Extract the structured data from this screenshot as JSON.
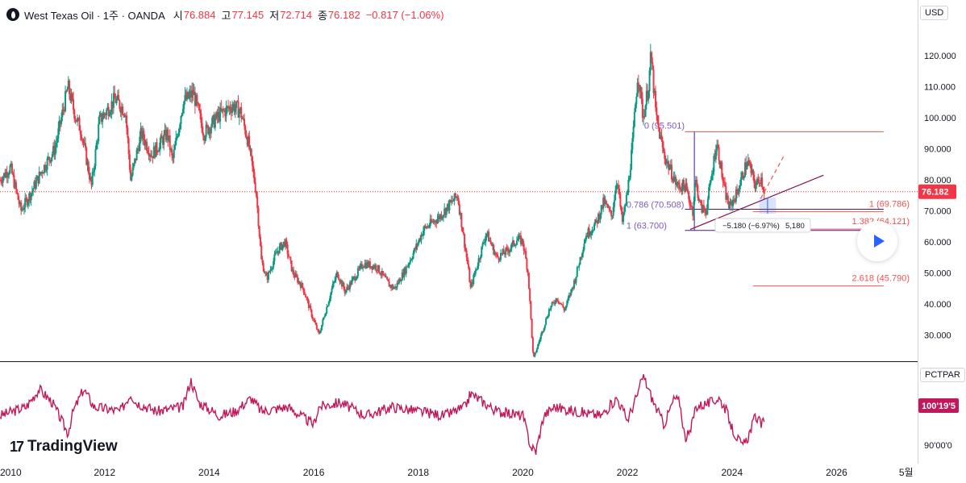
{
  "header": {
    "symbol": "West Texas Oil",
    "interval": "1주",
    "source": "OANDA",
    "title": "West Texas Oil · 1주 · OANDA",
    "open_label": "시",
    "open": "76.884",
    "high_label": "고",
    "high": "77.145",
    "low_label": "저",
    "low": "72.714",
    "close_label": "종",
    "close": "76.182",
    "change": "−0.817 (−1.06%)"
  },
  "currency_button": "USD",
  "indicator_button": "PCTPAR",
  "brand": "TradingView",
  "colors": {
    "up": "#089981",
    "down": "#f23645",
    "fib": "#7e57c2",
    "fib_red": "#ef5350",
    "indicator": "#c2185b",
    "trend": "#880e4f"
  },
  "price_label": "76.182",
  "indicator_label": "100'19'5",
  "chart_data": {
    "type": "candlestick",
    "series_interval": "weekly",
    "x_range": [
      2010.0,
      2027.55
    ],
    "ylim": [
      21.5,
      138
    ],
    "y_ticks": [
      30,
      40,
      50,
      60,
      70,
      80,
      90,
      100,
      110,
      120
    ],
    "y_tick_labels": [
      "30.000",
      "40.000",
      "50.000",
      "60.000",
      "70.000",
      "80.000",
      "90.000",
      "100.000",
      "110.000",
      "120.000"
    ],
    "x_ticks": [
      2010,
      2012,
      2014,
      2016,
      2018,
      2020,
      2022,
      2024,
      2026,
      2027.33
    ],
    "x_tick_labels": [
      "2010",
      "2012",
      "2014",
      "2016",
      "2018",
      "2020",
      "2022",
      "2024",
      "2026",
      "5월"
    ],
    "price_anchors": [
      [
        2010.0,
        80
      ],
      [
        2010.2,
        84
      ],
      [
        2010.4,
        70
      ],
      [
        2010.6,
        76
      ],
      [
        2010.8,
        83
      ],
      [
        2011.05,
        90
      ],
      [
        2011.3,
        110
      ],
      [
        2011.45,
        100
      ],
      [
        2011.55,
        96
      ],
      [
        2011.75,
        78
      ],
      [
        2011.9,
        99
      ],
      [
        2012.2,
        106
      ],
      [
        2012.4,
        102
      ],
      [
        2012.5,
        80
      ],
      [
        2012.7,
        95
      ],
      [
        2012.9,
        88
      ],
      [
        2013.2,
        95
      ],
      [
        2013.3,
        86
      ],
      [
        2013.5,
        105
      ],
      [
        2013.7,
        108
      ],
      [
        2013.9,
        95
      ],
      [
        2014.2,
        101
      ],
      [
        2014.45,
        104
      ],
      [
        2014.6,
        102
      ],
      [
        2014.75,
        92
      ],
      [
        2014.9,
        76
      ],
      [
        2015.0,
        54
      ],
      [
        2015.1,
        48
      ],
      [
        2015.3,
        57
      ],
      [
        2015.45,
        60
      ],
      [
        2015.6,
        50
      ],
      [
        2015.8,
        45
      ],
      [
        2015.95,
        37
      ],
      [
        2016.1,
        30
      ],
      [
        2016.2,
        36
      ],
      [
        2016.35,
        45
      ],
      [
        2016.45,
        50
      ],
      [
        2016.6,
        44
      ],
      [
        2016.8,
        49
      ],
      [
        2016.95,
        53
      ],
      [
        2017.2,
        52
      ],
      [
        2017.45,
        46
      ],
      [
        2017.55,
        45
      ],
      [
        2017.75,
        51
      ],
      [
        2017.95,
        58
      ],
      [
        2018.1,
        64
      ],
      [
        2018.4,
        68
      ],
      [
        2018.6,
        72
      ],
      [
        2018.75,
        75
      ],
      [
        2018.95,
        52
      ],
      [
        2019.0,
        45
      ],
      [
        2019.3,
        63
      ],
      [
        2019.5,
        55
      ],
      [
        2019.7,
        57
      ],
      [
        2019.9,
        61
      ],
      [
        2020.0,
        60
      ],
      [
        2020.1,
        50
      ],
      [
        2020.2,
        22
      ],
      [
        2020.35,
        30
      ],
      [
        2020.5,
        38
      ],
      [
        2020.65,
        42
      ],
      [
        2020.8,
        38
      ],
      [
        2021.0,
        48
      ],
      [
        2021.2,
        62
      ],
      [
        2021.4,
        66
      ],
      [
        2021.55,
        73
      ],
      [
        2021.7,
        68
      ],
      [
        2021.8,
        81
      ],
      [
        2021.9,
        66
      ],
      [
        2022.0,
        76
      ],
      [
        2022.1,
        92
      ],
      [
        2022.2,
        115
      ],
      [
        2022.3,
        100
      ],
      [
        2022.4,
        110
      ],
      [
        2022.45,
        120
      ],
      [
        2022.55,
        100
      ],
      [
        2022.7,
        88
      ],
      [
        2022.85,
        82
      ],
      [
        2022.95,
        78
      ],
      [
        2023.1,
        78
      ],
      [
        2023.25,
        70
      ],
      [
        2023.3,
        80
      ],
      [
        2023.4,
        71
      ],
      [
        2023.5,
        70
      ],
      [
        2023.6,
        80
      ],
      [
        2023.7,
        92
      ],
      [
        2023.75,
        88
      ],
      [
        2023.85,
        77
      ],
      [
        2023.95,
        71
      ],
      [
        2024.1,
        76
      ],
      [
        2024.25,
        84
      ],
      [
        2024.3,
        86
      ],
      [
        2024.45,
        78
      ],
      [
        2024.55,
        81
      ],
      [
        2024.62,
        76.182
      ]
    ],
    "indicator": {
      "name": "PCTPAR",
      "y_tick_labels": [
        "100'19'5",
        "90'00'0"
      ],
      "anchors": [
        [
          2010.0,
          0.45
        ],
        [
          2010.5,
          0.55
        ],
        [
          2010.75,
          0.75
        ],
        [
          2011.0,
          0.6
        ],
        [
          2011.3,
          0.25
        ],
        [
          2011.4,
          0.5
        ],
        [
          2011.6,
          0.75
        ],
        [
          2011.8,
          0.55
        ],
        [
          2012.3,
          0.5
        ],
        [
          2012.5,
          0.7
        ],
        [
          2012.6,
          0.6
        ],
        [
          2013.0,
          0.5
        ],
        [
          2013.5,
          0.55
        ],
        [
          2013.65,
          0.85
        ],
        [
          2013.8,
          0.6
        ],
        [
          2014.2,
          0.45
        ],
        [
          2014.5,
          0.5
        ],
        [
          2014.8,
          0.65
        ],
        [
          2015.0,
          0.5
        ],
        [
          2015.5,
          0.55
        ],
        [
          2016.0,
          0.35
        ],
        [
          2016.1,
          0.55
        ],
        [
          2016.5,
          0.6
        ],
        [
          2017.0,
          0.45
        ],
        [
          2017.5,
          0.55
        ],
        [
          2018.0,
          0.5
        ],
        [
          2018.5,
          0.45
        ],
        [
          2018.9,
          0.55
        ],
        [
          2019.0,
          0.7
        ],
        [
          2019.5,
          0.5
        ],
        [
          2020.0,
          0.45
        ],
        [
          2020.15,
          0.1
        ],
        [
          2020.25,
          0.05
        ],
        [
          2020.4,
          0.45
        ],
        [
          2020.6,
          0.55
        ],
        [
          2021.0,
          0.5
        ],
        [
          2021.5,
          0.45
        ],
        [
          2021.8,
          0.65
        ],
        [
          2022.0,
          0.4
        ],
        [
          2022.2,
          0.7
        ],
        [
          2022.3,
          0.9
        ],
        [
          2022.5,
          0.6
        ],
        [
          2022.7,
          0.35
        ],
        [
          2022.9,
          0.65
        ],
        [
          2023.0,
          0.6
        ],
        [
          2023.1,
          0.2
        ],
        [
          2023.2,
          0.25
        ],
        [
          2023.3,
          0.55
        ],
        [
          2023.6,
          0.6
        ],
        [
          2023.75,
          0.65
        ],
        [
          2023.9,
          0.5
        ],
        [
          2024.0,
          0.3
        ],
        [
          2024.2,
          0.1
        ],
        [
          2024.3,
          0.2
        ],
        [
          2024.45,
          0.45
        ],
        [
          2024.55,
          0.35
        ],
        [
          2024.62,
          0.38
        ]
      ]
    },
    "fib_upper": {
      "levels": [
        {
          "label": "0 (95.501)",
          "price": 95.501
        },
        {
          "label": "0.786 (70.508)",
          "price": 70.508
        },
        {
          "label": "1 (63.700)",
          "price": 63.7
        }
      ],
      "x_start": 2023.1,
      "x_end": 2026.9
    },
    "fib_lower": {
      "levels": [
        {
          "label": "1 (69.786)",
          "price": 69.786
        },
        {
          "label": "1.382 (64.121)",
          "price": 64.121
        },
        {
          "label": "2.618 (45.790)",
          "price": 45.79
        }
      ],
      "x_start": 2024.4,
      "x_end": 2026.9
    },
    "trendline": {
      "start": [
        2023.2,
        64
      ],
      "end": [
        2025.75,
        81.5
      ]
    },
    "projection": {
      "start": [
        2024.55,
        74
      ],
      "end": [
        2025.0,
        88
      ]
    },
    "measure": {
      "price_from": 74.3,
      "price_to": 69.1,
      "label": "−5.180 (−6.97%)",
      "bars_label": "5,180"
    }
  }
}
